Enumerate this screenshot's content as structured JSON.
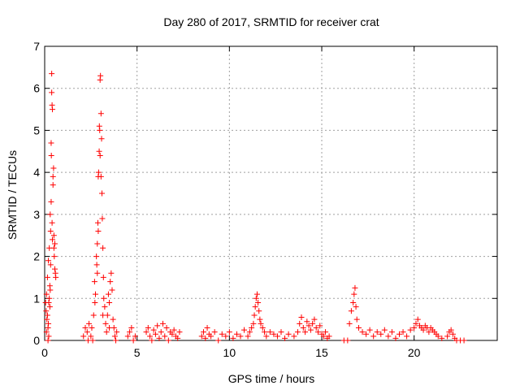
{
  "chart_data": {
    "type": "scatter",
    "title": "Day 280 of 2017, SRMTID for receiver crat",
    "xlabel": "GPS time / hours",
    "ylabel": "SRMTID / TECUs",
    "xlim": [
      0,
      24.5
    ],
    "ylim": [
      0,
      7
    ],
    "xticks": [
      0,
      5,
      10,
      15,
      20
    ],
    "yticks": [
      0,
      1,
      2,
      3,
      4,
      5,
      6,
      7
    ],
    "grid": true,
    "marker": "+",
    "color": "#ff0000",
    "series": [
      {
        "name": "SRMTID",
        "points": [
          [
            0.05,
            0.9
          ],
          [
            0.08,
            0.7
          ],
          [
            0.1,
            1.1
          ],
          [
            0.12,
            0.5
          ],
          [
            0.15,
            1.5
          ],
          [
            0.18,
            0.3
          ],
          [
            0.2,
            1.9
          ],
          [
            0.22,
            0.1
          ],
          [
            0.25,
            2.2
          ],
          [
            0.28,
            0.8
          ],
          [
            0.3,
            1.2
          ],
          [
            0.32,
            2.6
          ],
          [
            0.35,
            4.7
          ],
          [
            0.36,
            4.4
          ],
          [
            0.38,
            5.9
          ],
          [
            0.38,
            6.35
          ],
          [
            0.4,
            5.6
          ],
          [
            0.42,
            5.5
          ],
          [
            0.45,
            3.7
          ],
          [
            0.48,
            4.1
          ],
          [
            0.5,
            2.5
          ],
          [
            0.52,
            2.0
          ],
          [
            0.55,
            2.3
          ],
          [
            0.58,
            1.6
          ],
          [
            0.6,
            1.5
          ],
          [
            0.15,
            0.6
          ],
          [
            0.25,
            1.0
          ],
          [
            0.3,
            3.0
          ],
          [
            0.35,
            3.3
          ],
          [
            0.4,
            2.8
          ],
          [
            0.45,
            3.9
          ],
          [
            0.5,
            2.2
          ],
          [
            0.2,
            0.4
          ],
          [
            0.1,
            0.2
          ],
          [
            0.32,
            1.8
          ],
          [
            0.42,
            2.4
          ],
          [
            0.55,
            1.7
          ],
          [
            0.28,
            1.3
          ],
          [
            0.22,
            0.9
          ],
          [
            0.18,
            0.0
          ],
          [
            2.1,
            0.1
          ],
          [
            2.2,
            0.3
          ],
          [
            2.3,
            0.2
          ],
          [
            2.35,
            0.0
          ],
          [
            2.4,
            0.4
          ],
          [
            2.5,
            0.1
          ],
          [
            2.55,
            0.3
          ],
          [
            2.6,
            0.0
          ],
          [
            2.65,
            0.6
          ],
          [
            2.7,
            1.4
          ],
          [
            2.72,
            0.9
          ],
          [
            2.75,
            1.1
          ],
          [
            2.8,
            2.0
          ],
          [
            2.82,
            1.8
          ],
          [
            2.85,
            2.3
          ],
          [
            2.88,
            2.8
          ],
          [
            2.9,
            3.9
          ],
          [
            2.92,
            4.0
          ],
          [
            2.95,
            4.5
          ],
          [
            2.96,
            5.1
          ],
          [
            2.98,
            5.0
          ],
          [
            3.0,
            6.2
          ],
          [
            3.02,
            6.3
          ],
          [
            3.05,
            5.4
          ],
          [
            3.08,
            4.8
          ],
          [
            3.1,
            3.5
          ],
          [
            3.12,
            2.9
          ],
          [
            3.15,
            2.2
          ],
          [
            3.18,
            1.5
          ],
          [
            3.2,
            1.0
          ],
          [
            3.25,
            0.8
          ],
          [
            3.3,
            0.4
          ],
          [
            3.35,
            0.2
          ],
          [
            3.4,
            0.6
          ],
          [
            3.45,
            1.1
          ],
          [
            3.5,
            0.9
          ],
          [
            3.55,
            1.4
          ],
          [
            3.6,
            1.6
          ],
          [
            3.65,
            1.2
          ],
          [
            3.7,
            0.5
          ],
          [
            3.75,
            0.3
          ],
          [
            3.8,
            0.1
          ],
          [
            3.85,
            0.0
          ],
          [
            3.9,
            0.2
          ],
          [
            2.9,
            2.6
          ],
          [
            3.0,
            4.4
          ],
          [
            3.05,
            3.9
          ],
          [
            2.85,
            1.6
          ],
          [
            3.15,
            0.6
          ],
          [
            3.5,
            0.3
          ],
          [
            4.5,
            0.1
          ],
          [
            4.6,
            0.2
          ],
          [
            4.7,
            0.3
          ],
          [
            4.8,
            0.0
          ],
          [
            4.9,
            0.1
          ],
          [
            5.5,
            0.2
          ],
          [
            5.6,
            0.3
          ],
          [
            5.7,
            0.1
          ],
          [
            5.8,
            0.0
          ],
          [
            5.9,
            0.25
          ],
          [
            6.0,
            0.15
          ],
          [
            6.1,
            0.35
          ],
          [
            6.2,
            0.05
          ],
          [
            6.3,
            0.2
          ],
          [
            6.4,
            0.4
          ],
          [
            6.5,
            0.1
          ],
          [
            6.6,
            0.3
          ],
          [
            6.7,
            0.0
          ],
          [
            6.8,
            0.2
          ],
          [
            6.9,
            0.15
          ],
          [
            7.0,
            0.25
          ],
          [
            7.1,
            0.1
          ],
          [
            7.2,
            0.05
          ],
          [
            7.3,
            0.2
          ],
          [
            8.5,
            0.1
          ],
          [
            8.6,
            0.2
          ],
          [
            8.7,
            0.05
          ],
          [
            8.8,
            0.3
          ],
          [
            8.9,
            0.15
          ],
          [
            9.0,
            0.1
          ],
          [
            9.2,
            0.2
          ],
          [
            9.4,
            0.0
          ],
          [
            9.6,
            0.15
          ],
          [
            9.8,
            0.1
          ],
          [
            10.0,
            0.2
          ],
          [
            10.2,
            0.05
          ],
          [
            10.4,
            0.15
          ],
          [
            10.6,
            0.1
          ],
          [
            10.8,
            0.25
          ],
          [
            11.0,
            0.1
          ],
          [
            11.1,
            0.2
          ],
          [
            11.2,
            0.3
          ],
          [
            11.3,
            0.4
          ],
          [
            11.35,
            0.6
          ],
          [
            11.4,
            0.8
          ],
          [
            11.45,
            1.0
          ],
          [
            11.5,
            1.1
          ],
          [
            11.55,
            0.9
          ],
          [
            11.6,
            0.7
          ],
          [
            11.65,
            0.5
          ],
          [
            11.7,
            0.4
          ],
          [
            11.8,
            0.3
          ],
          [
            11.9,
            0.2
          ],
          [
            12.0,
            0.1
          ],
          [
            12.2,
            0.2
          ],
          [
            12.4,
            0.15
          ],
          [
            12.6,
            0.1
          ],
          [
            12.8,
            0.2
          ],
          [
            13.0,
            0.05
          ],
          [
            13.2,
            0.15
          ],
          [
            13.5,
            0.1
          ],
          [
            13.7,
            0.2
          ],
          [
            13.8,
            0.4
          ],
          [
            13.9,
            0.55
          ],
          [
            14.0,
            0.3
          ],
          [
            14.1,
            0.2
          ],
          [
            14.2,
            0.45
          ],
          [
            14.3,
            0.35
          ],
          [
            14.4,
            0.25
          ],
          [
            14.5,
            0.4
          ],
          [
            14.6,
            0.5
          ],
          [
            14.7,
            0.3
          ],
          [
            14.8,
            0.2
          ],
          [
            14.9,
            0.35
          ],
          [
            15.0,
            0.15
          ],
          [
            15.1,
            0.1
          ],
          [
            15.2,
            0.2
          ],
          [
            15.3,
            0.05
          ],
          [
            15.4,
            0.1
          ],
          [
            16.2,
            0.0
          ],
          [
            16.4,
            0.0
          ],
          [
            16.5,
            0.4
          ],
          [
            16.6,
            0.7
          ],
          [
            16.7,
            0.9
          ],
          [
            16.75,
            1.1
          ],
          [
            16.8,
            1.25
          ],
          [
            16.85,
            0.8
          ],
          [
            16.9,
            0.5
          ],
          [
            17.0,
            0.3
          ],
          [
            17.2,
            0.2
          ],
          [
            17.4,
            0.15
          ],
          [
            17.6,
            0.25
          ],
          [
            17.8,
            0.1
          ],
          [
            18.0,
            0.2
          ],
          [
            18.2,
            0.15
          ],
          [
            18.4,
            0.25
          ],
          [
            18.6,
            0.1
          ],
          [
            18.8,
            0.2
          ],
          [
            19.0,
            0.05
          ],
          [
            19.2,
            0.15
          ],
          [
            19.4,
            0.2
          ],
          [
            19.6,
            0.1
          ],
          [
            19.8,
            0.25
          ],
          [
            20.0,
            0.3
          ],
          [
            20.1,
            0.4
          ],
          [
            20.2,
            0.5
          ],
          [
            20.3,
            0.35
          ],
          [
            20.4,
            0.3
          ],
          [
            20.5,
            0.25
          ],
          [
            20.6,
            0.35
          ],
          [
            20.7,
            0.3
          ],
          [
            20.8,
            0.2
          ],
          [
            20.9,
            0.3
          ],
          [
            21.0,
            0.25
          ],
          [
            21.1,
            0.2
          ],
          [
            21.2,
            0.15
          ],
          [
            21.3,
            0.1
          ],
          [
            21.5,
            0.05
          ],
          [
            21.8,
            0.1
          ],
          [
            21.9,
            0.2
          ],
          [
            22.0,
            0.25
          ],
          [
            22.1,
            0.15
          ],
          [
            22.2,
            0.05
          ],
          [
            22.3,
            0.0
          ],
          [
            22.5,
            0.0
          ],
          [
            22.7,
            0.0
          ]
        ]
      }
    ]
  }
}
